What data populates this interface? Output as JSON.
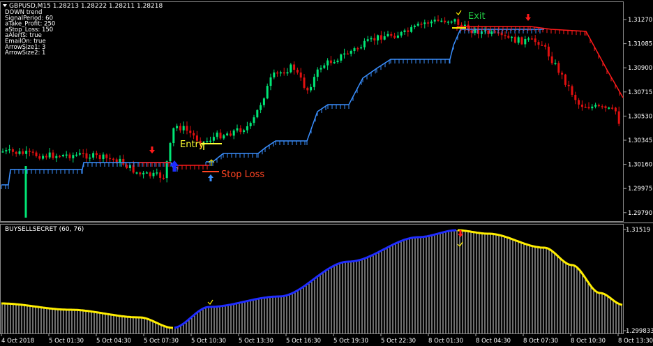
{
  "main": {
    "header": "GBPUSD,M15  1.28213 1.28222 1.28211 1.28218",
    "info_lines": [
      "DOWN trend",
      "SignalPeriod: 60",
      "aTake_Profit: 250",
      "aStop_Loss: 150",
      "aAlerts: true",
      "EmailOn: true",
      "ArrowSize1: 3",
      "ArrowSize2: 1"
    ],
    "price_ticks": [
      "1.31270",
      "1.31085",
      "1.30900",
      "1.30715",
      "1.30530",
      "1.30345",
      "1.30160",
      "1.29975",
      "1.29790"
    ],
    "annotations": {
      "entry": "Entry",
      "stop_loss": "Stop Loss",
      "exit": "Exit"
    }
  },
  "sub": {
    "title": "BUYSELLSECRET (60, 76)",
    "ticks": [
      "1.31519",
      "1.299833"
    ]
  },
  "time_ticks": [
    "4 Oct 2018",
    "5 Oct 01:30",
    "5 Oct 04:30",
    "5 Oct 07:30",
    "5 Oct 10:30",
    "5 Oct 13:30",
    "5 Oct 16:30",
    "5 Oct 19:30",
    "5 Oct 22:30",
    "8 Oct 01:30",
    "8 Oct 04:30",
    "8 Oct 07:30",
    "8 Oct 10:30",
    "8 Oct 13:30"
  ],
  "colors": {
    "bull": "#00e676",
    "bear": "#e01010",
    "support": "#3a8fff",
    "resistance": "#ff1a1a",
    "osc_up": "#1f2cff",
    "osc_down": "#ffee00",
    "entry": "#ffff33",
    "stop": "#ff4422",
    "exit": "#22cc44"
  }
}
